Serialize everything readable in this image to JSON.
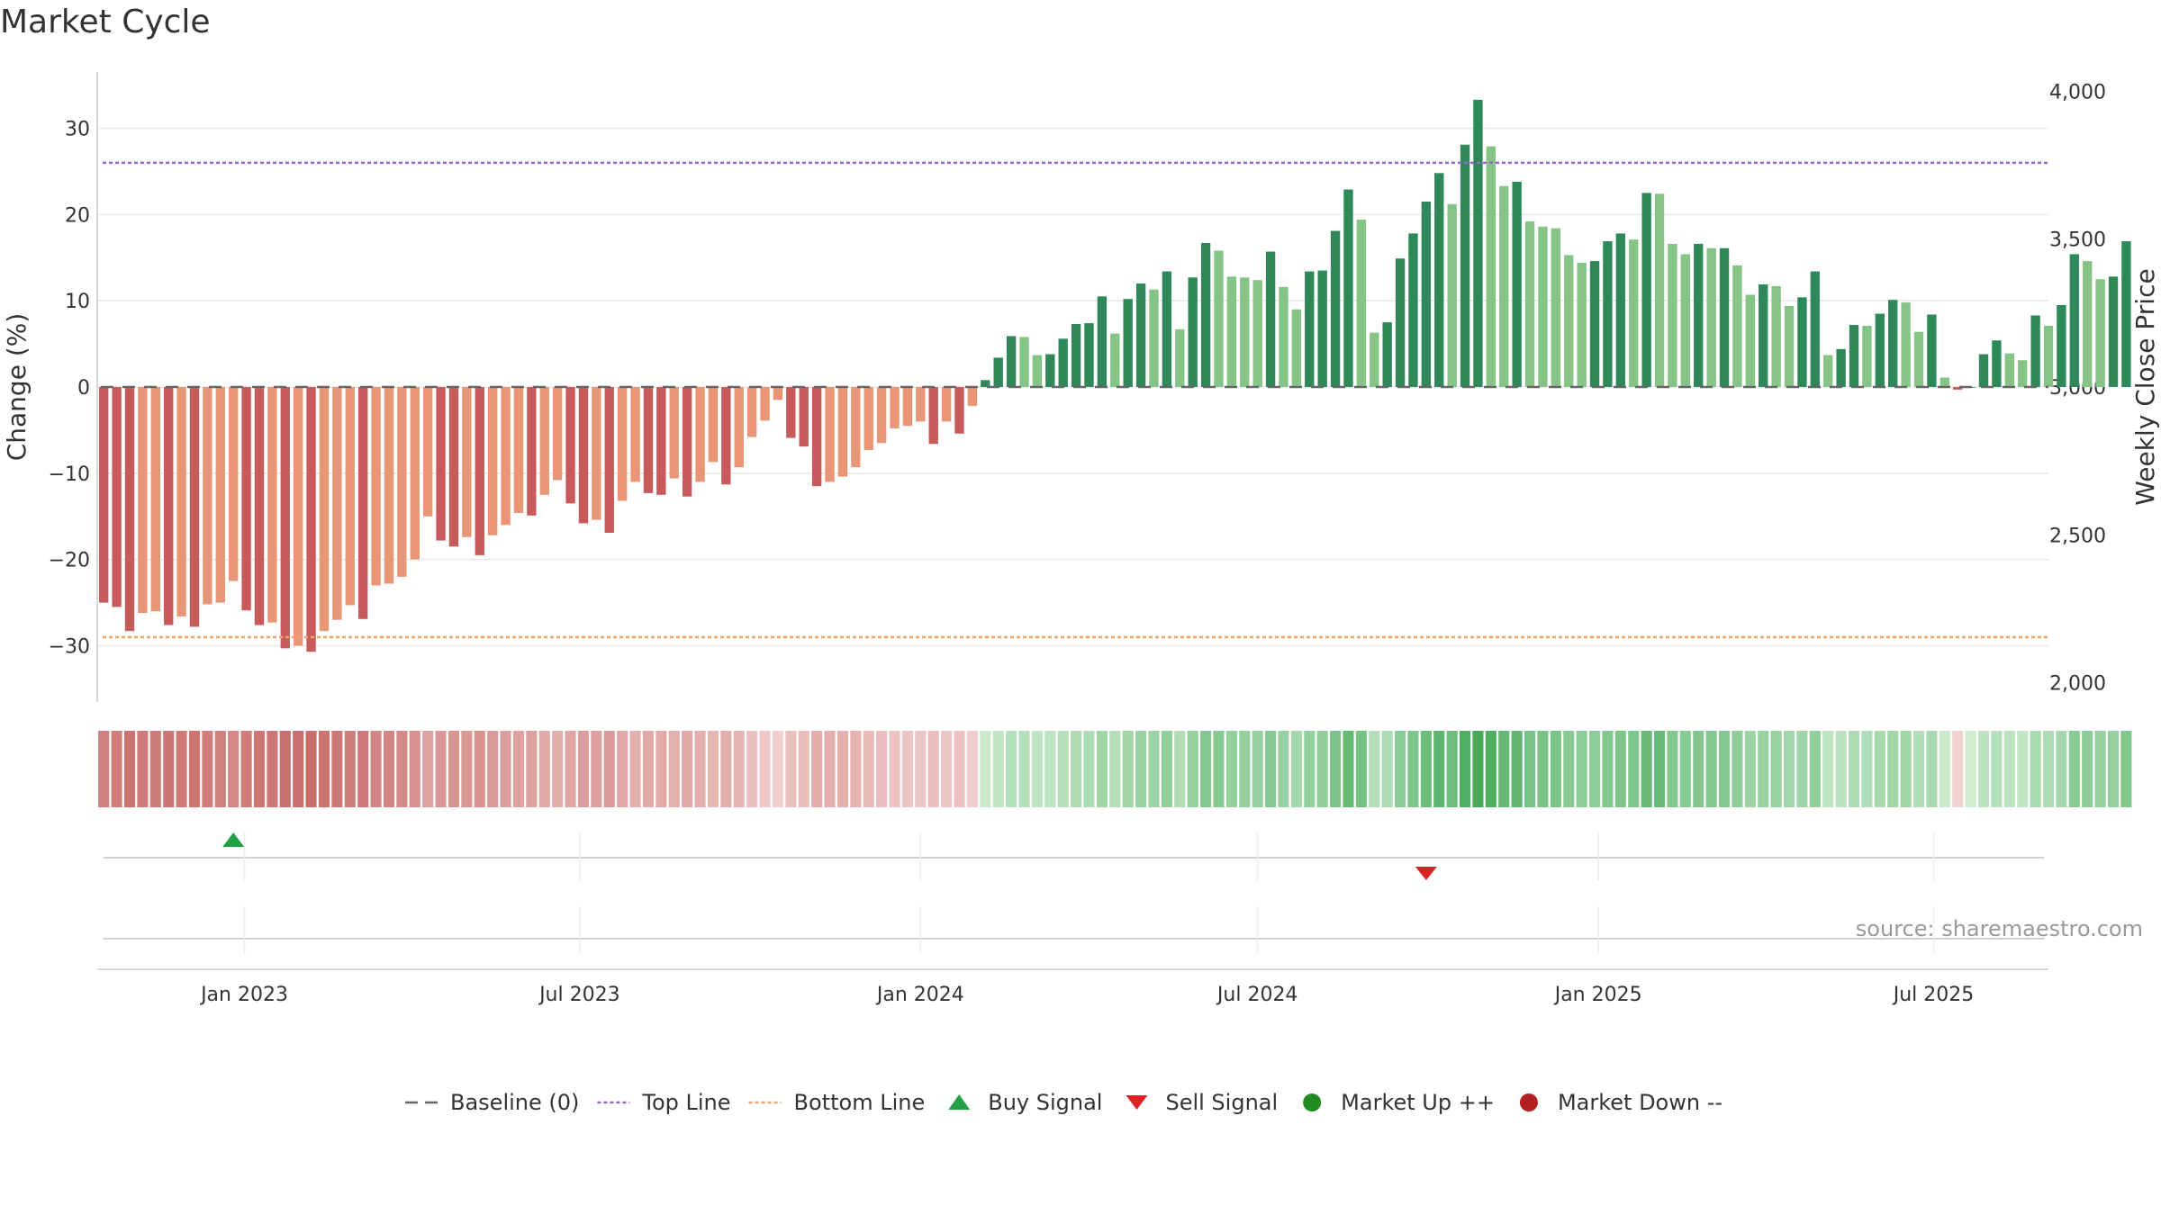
{
  "title": "Market Cycle",
  "source": "source: sharemaestro.com",
  "colors": {
    "neg_dark": "#c95a5c",
    "neg_light": "#e89676",
    "pos_dark": "#2e8857",
    "pos_light": "#86c485",
    "top_line": "#9966cc",
    "bottom_line": "#f0a26a",
    "baseline": "#666666",
    "buy": "#22a045",
    "sell": "#dd2222",
    "market_up": "#228b22",
    "market_down": "#b22222"
  },
  "chart_data": {
    "type": "bar",
    "ylabel": "Change (%)",
    "y2label": "Weekly Close Price",
    "ylim": [
      -36,
      36
    ],
    "yticks": [
      30,
      20,
      10,
      0,
      -10,
      -20,
      -30
    ],
    "ytick_labels": [
      "30",
      "20",
      "10",
      "0",
      "−10",
      "−20",
      "−30"
    ],
    "y2lim": [
      1950,
      4050
    ],
    "y2ticks": [
      4000,
      3500,
      3000,
      2500,
      2000
    ],
    "y2tick_labels": [
      "4,000",
      "3,500",
      "3,000",
      "2,500",
      "2,000"
    ],
    "top_line": 26,
    "bottom_line": -29,
    "start_date": "2022-10-17",
    "x_end_date": "2025-09-01",
    "xticks": [
      "2023-01-01",
      "2023-07-01",
      "2024-01-01",
      "2024-07-01",
      "2025-01-01",
      "2025-07-01"
    ],
    "xtick_labels": [
      "Jan 2023",
      "Jul 2023",
      "Jan 2024",
      "Jul 2024",
      "Jan 2025",
      "Jul 2025"
    ],
    "values": [
      -25,
      -25.5,
      -28.3,
      -26.2,
      -26,
      -27.6,
      -26.6,
      -27.8,
      -25.2,
      -25,
      -22.5,
      -25.9,
      -27.6,
      -27.3,
      -30.3,
      -30,
      -30.7,
      -28.3,
      -27,
      -25.3,
      -26.9,
      -23,
      -22.8,
      -22,
      -20,
      -15,
      -17.8,
      -18.5,
      -17.4,
      -19.5,
      -17.2,
      -16,
      -14.6,
      -14.9,
      -12.5,
      -10.8,
      -13.5,
      -15.8,
      -15.4,
      -16.9,
      -13.2,
      -11,
      -12.3,
      -12.5,
      -10.6,
      -12.7,
      -11,
      -8.7,
      -11.3,
      -9.3,
      -5.8,
      -3.9,
      -1.5,
      -5.9,
      -6.9,
      -11.5,
      -11,
      -10.4,
      -9.3,
      -7.3,
      -6.5,
      -4.8,
      -4.5,
      -4,
      -6.6,
      -4,
      -5.4,
      -2.2,
      0.8,
      3.4,
      5.9,
      5.8,
      3.7,
      3.8,
      5.6,
      7.3,
      7.4,
      10.5,
      6.2,
      10.2,
      12,
      11.3,
      13.4,
      6.7,
      12.7,
      16.7,
      15.8,
      12.8,
      12.7,
      12.4,
      15.7,
      11.6,
      9,
      13.4,
      13.5,
      18.1,
      22.9,
      19.4,
      6.3,
      7.5,
      14.9,
      17.8,
      21.5,
      24.8,
      21.2,
      28.1,
      33.3,
      27.9,
      23.3,
      23.8,
      19.2,
      18.6,
      18.4,
      15.3,
      14.4,
      14.6,
      16.9,
      17.8,
      17.1,
      22.5,
      22.4,
      16.6,
      15.4,
      16.6,
      16.1,
      16.1,
      14.1,
      10.7,
      11.9,
      11.7,
      9.4,
      10.4,
      13.4,
      3.7,
      4.4,
      7.2,
      7.1,
      8.5,
      10.1,
      9.8,
      6.4,
      8.4,
      1.1,
      -0.3,
      0,
      3.8,
      5.4,
      3.9,
      3.1,
      8.3,
      7.1,
      9.5,
      15.4,
      14.6,
      12.5,
      12.8,
      16.9
    ],
    "signals": [
      {
        "type": "buy",
        "date": "2022-12-26"
      },
      {
        "type": "sell",
        "date": "2024-09-30"
      }
    ],
    "legend": [
      {
        "label": "Baseline (0)",
        "symbol": "dash"
      },
      {
        "label": "Top Line",
        "symbol": "dot-purple"
      },
      {
        "label": "Bottom Line",
        "symbol": "dot-orange"
      },
      {
        "label": "Buy Signal",
        "symbol": "triangle-up"
      },
      {
        "label": "Sell Signal",
        "symbol": "triangle-down"
      },
      {
        "label": "Market Up ++",
        "symbol": "circle-green"
      },
      {
        "label": "Market Down --",
        "symbol": "circle-red"
      }
    ]
  }
}
